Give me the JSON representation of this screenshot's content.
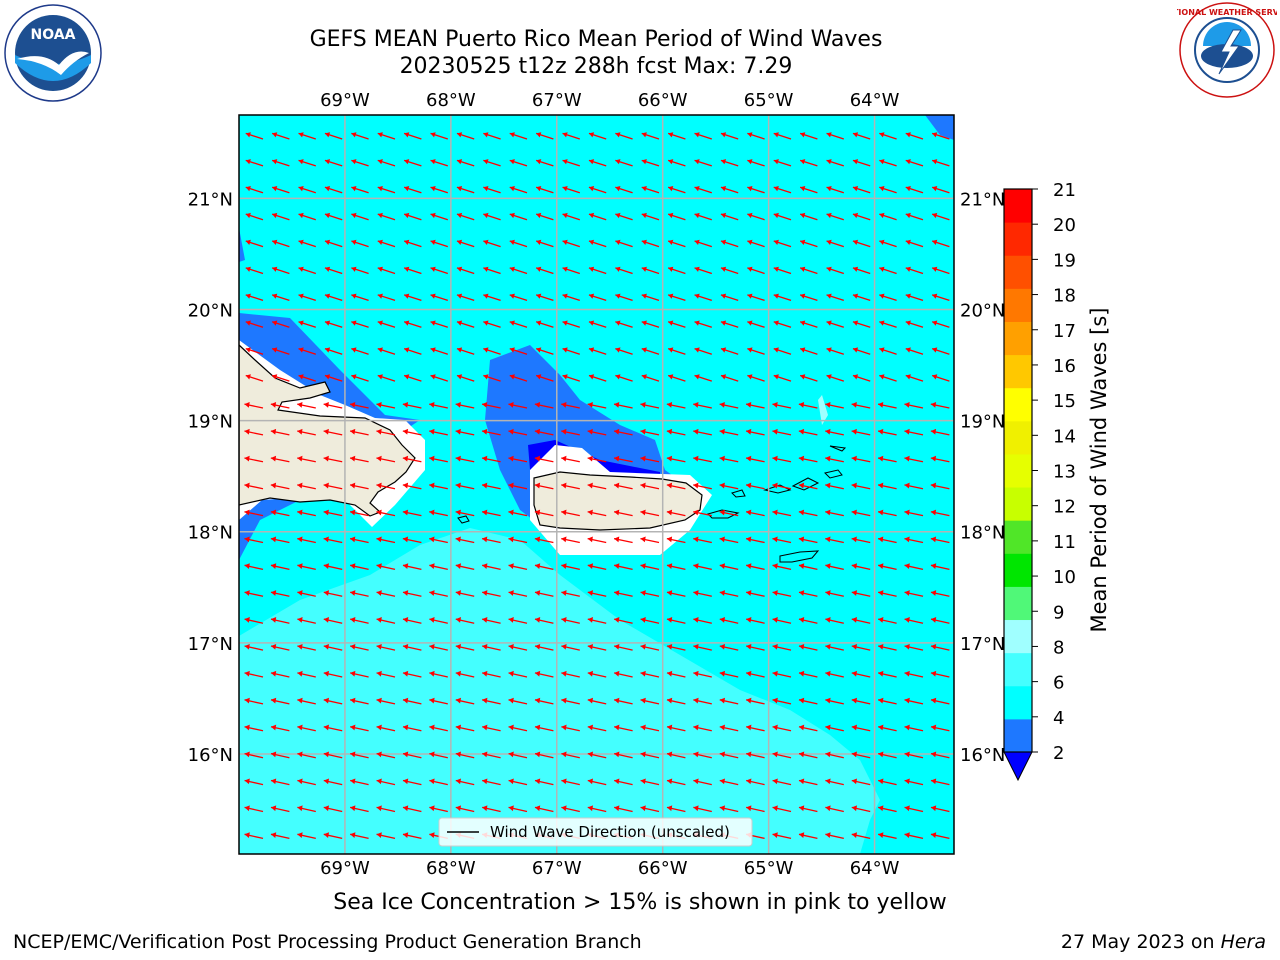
{
  "title": {
    "line1": "GEFS MEAN Puerto Rico Mean Period of Wind Waves",
    "line2": "20230525 t12z 288h fcst   Max: 7.29"
  },
  "logos": {
    "left": {
      "name": "noaa-logo",
      "text": "NOAA"
    },
    "right": {
      "name": "national-weather-service-logo",
      "text": "NATIONAL WEATHER SERVICE"
    }
  },
  "map": {
    "lon_ticks": [
      "69°W",
      "68°W",
      "67°W",
      "66°W",
      "65°W",
      "64°W"
    ],
    "lat_ticks": [
      "21°N",
      "20°N",
      "19°N",
      "18°N",
      "17°N",
      "16°N"
    ],
    "lon_range": [
      -70.0,
      -63.25
    ],
    "lat_range": [
      15.1,
      21.75
    ],
    "gridlines": true,
    "land_labels": [],
    "legend": {
      "label": "Wind Wave Direction (unscaled)",
      "placement": "bottom-center"
    },
    "arrow_color": "#ff0000",
    "wave_direction": "from east-southeast toward west-northwest"
  },
  "colorbar": {
    "label": "Mean Period of Wind Waves [s]",
    "ticks": [
      "21",
      "20",
      "19",
      "18",
      "17",
      "16",
      "15",
      "14",
      "13",
      "12",
      "11",
      "10",
      "9",
      "8",
      "6",
      "4",
      "2"
    ],
    "levels": [
      {
        "from": 2,
        "to": 4,
        "color": "#1e78ff"
      },
      {
        "from": 4,
        "to": 6,
        "color": "#00ffff"
      },
      {
        "from": 6,
        "to": 8,
        "color": "#44ffff"
      },
      {
        "from": 8,
        "to": 9,
        "color": "#a0ffff"
      },
      {
        "from": 9,
        "to": 10,
        "color": "#50f878"
      },
      {
        "from": 10,
        "to": 11,
        "color": "#00e600"
      },
      {
        "from": 11,
        "to": 12,
        "color": "#50e628"
      },
      {
        "from": 12,
        "to": 13,
        "color": "#c8ff00"
      },
      {
        "from": 13,
        "to": 14,
        "color": "#e6ff00"
      },
      {
        "from": 14,
        "to": 15,
        "color": "#f0f000"
      },
      {
        "from": 15,
        "to": 16,
        "color": "#ffff00"
      },
      {
        "from": 16,
        "to": 17,
        "color": "#ffc800"
      },
      {
        "from": 17,
        "to": 18,
        "color": "#ffa000"
      },
      {
        "from": 18,
        "to": 19,
        "color": "#ff7800"
      },
      {
        "from": 19,
        "to": 20,
        "color": "#ff5000"
      },
      {
        "from": 20,
        "to": 21,
        "color": "#ff2800"
      },
      {
        "from": 21,
        "to": 22,
        "color": "#ff0000"
      }
    ],
    "under_color": "#0000ff"
  },
  "subtitle": "Sea Ice Concentration > 15% is shown in pink to yellow",
  "footer": {
    "credit": "NCEP/EMC/Verification Post Processing Product Generation Branch",
    "date_prefix": "27 May 2023 on ",
    "machine": "Hera"
  },
  "colors": {
    "land": "#efecdc",
    "period_lt_2": "#0000ff",
    "period_2_4": "#1e78ff",
    "period_4_6": "#00ffff",
    "period_6_8": "#44ffff",
    "period_8_9": "#a0ffff",
    "missing": "#ffffff",
    "grid": "#b4b4b4"
  }
}
